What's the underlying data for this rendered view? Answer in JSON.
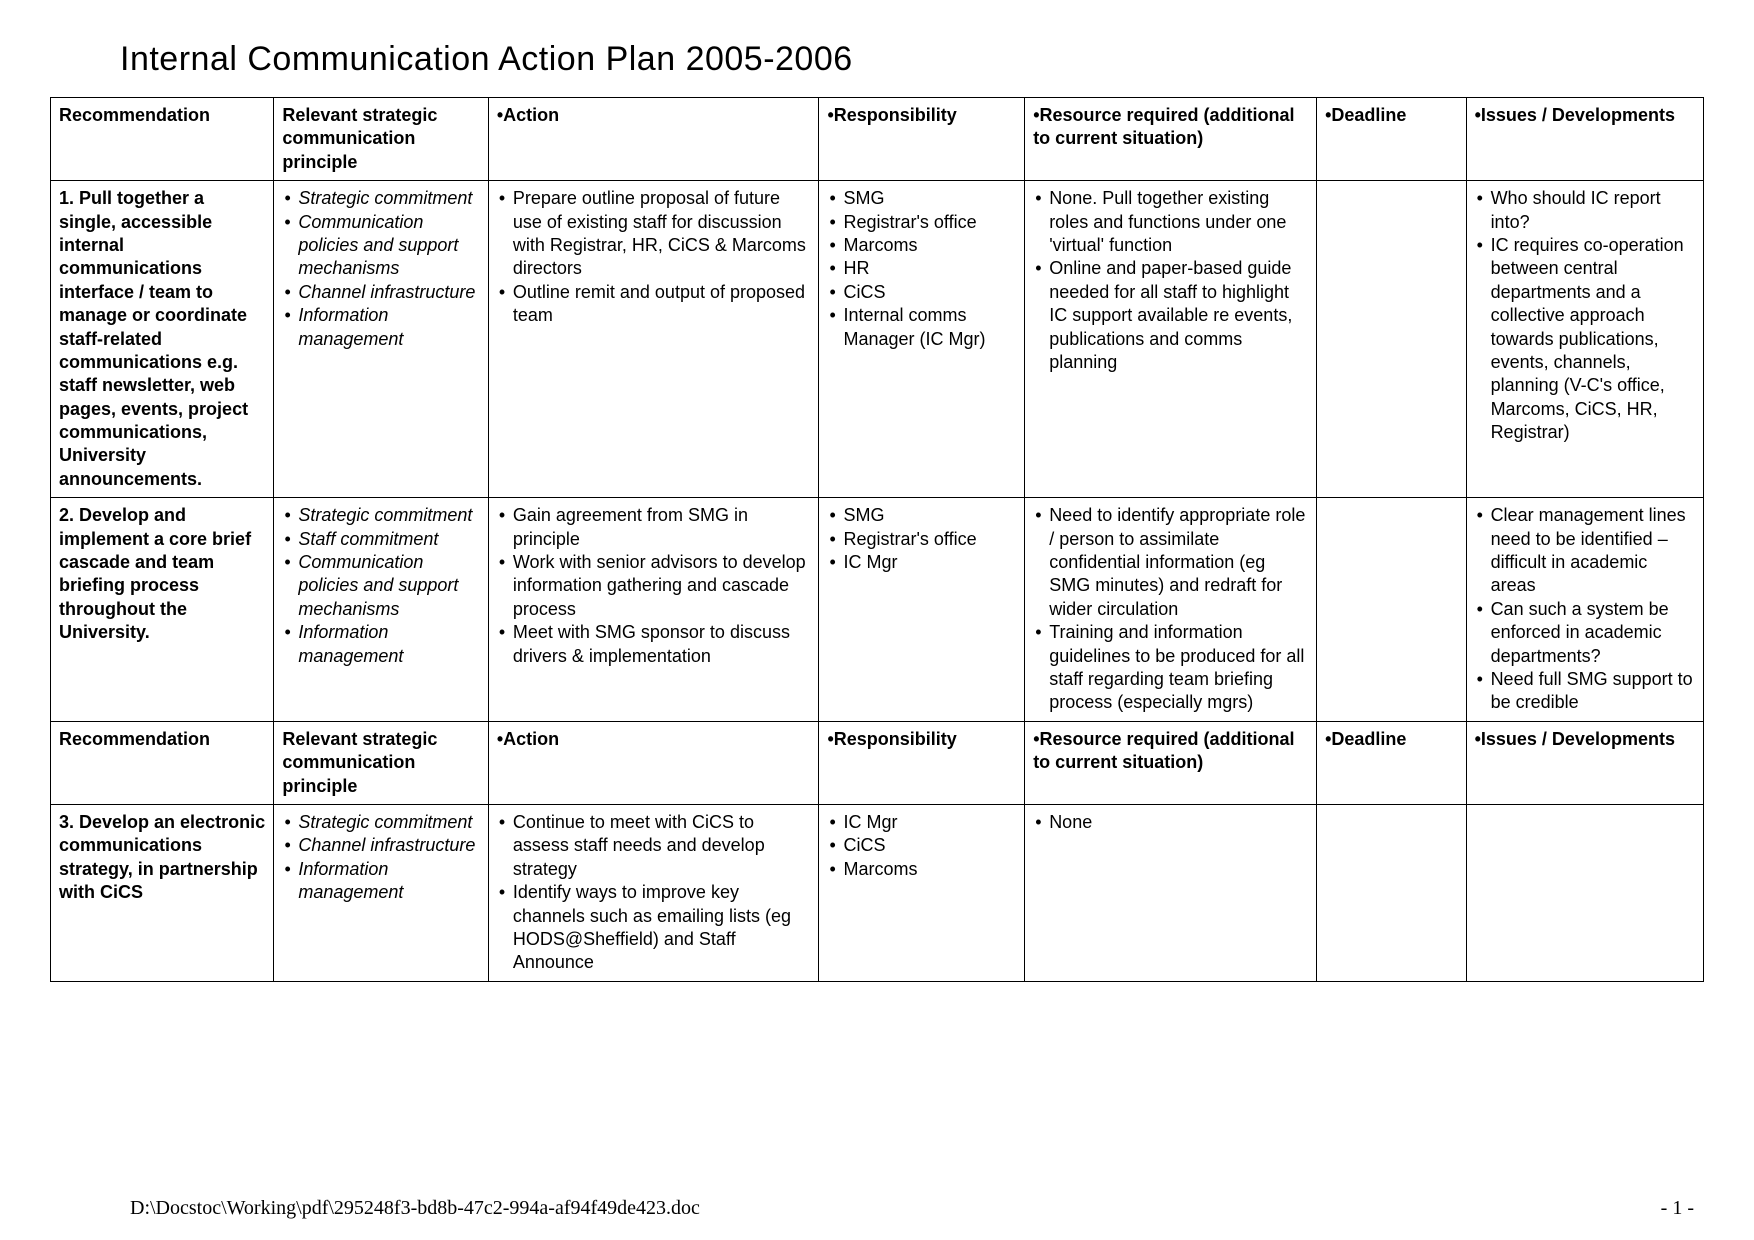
{
  "title": "Internal Communication Action Plan 2005-2006",
  "headers": {
    "c1": "Recommendation",
    "c2": "Relevant strategic communication principle",
    "c3": "Action",
    "c4": "Responsibility",
    "c5": "Resource required (additional to current situation)",
    "c6": "Deadline",
    "c7": "Issues / Developments"
  },
  "rows": [
    {
      "rec": "1. Pull together a single, accessible internal communications interface / team to manage or coordinate staff-related communications e.g. staff newsletter, web pages, events, project communications, University announcements.",
      "prin": [
        "Strategic commitment",
        "Communication policies and support mechanisms",
        "Channel infrastructure",
        "Information management"
      ],
      "act": [
        "Prepare outline proposal of future use of existing staff for discussion with Registrar, HR, CiCS & Marcoms directors",
        "Outline remit and output of proposed team"
      ],
      "resp": [
        "SMG",
        "Registrar's office",
        "Marcoms",
        "HR",
        "CiCS",
        "Internal comms Manager (IC Mgr)"
      ],
      "res": [
        "None.  Pull together existing roles and functions under one 'virtual' function",
        "Online and paper-based guide needed for all staff to highlight IC support available re events, publications and comms planning"
      ],
      "dead": "",
      "iss": [
        "Who should IC report into?",
        "IC requires co-operation between central departments and a collective approach towards publications, events, channels, planning (V-C's office, Marcoms, CiCS, HR, Registrar)"
      ]
    },
    {
      "rec": "2. Develop and implement a core brief cascade and team briefing process throughout the University.",
      "prin": [
        "Strategic commitment",
        "Staff commitment",
        "Communication policies and support mechanisms",
        "Information management"
      ],
      "act": [
        "Gain agreement from SMG in principle",
        "Work with senior advisors to develop information gathering  and cascade process",
        "Meet with SMG sponsor to discuss drivers &  implementation"
      ],
      "resp": [
        "SMG",
        "Registrar's office",
        "IC Mgr"
      ],
      "res": [
        "Need to identify appropriate role / person to assimilate confidential information (eg SMG minutes) and redraft for wider circulation",
        "Training and information guidelines to be produced for all staff regarding team briefing process (especially mgrs)"
      ],
      "dead": "",
      "iss": [
        "Clear management lines need to be identified – difficult in academic areas",
        "Can such a system be enforced in academic departments?",
        "Need full SMG support to be credible"
      ]
    },
    {
      "rec": "3. Develop an electronic communications strategy, in partnership with CiCS",
      "prin": [
        "Strategic commitment",
        "Channel infrastructure",
        "Information management"
      ],
      "act": [
        "Continue to meet with CiCS to assess staff needs and develop strategy",
        "Identify  ways to improve key channels such as emailing lists (eg HODS@Sheffield) and Staff Announce"
      ],
      "resp": [
        "IC Mgr",
        "CiCS",
        "Marcoms"
      ],
      "res": [
        "None"
      ],
      "dead": "",
      "iss": []
    }
  ],
  "footer_path": "D:\\Docstoc\\Working\\pdf\\295248f3-bd8b-47c2-994a-af94f49de423.doc",
  "footer_page": "- 1 -",
  "style": {
    "font_family": "Arial Narrow",
    "title_fontsize": 34,
    "cell_fontsize": 18,
    "border_color": "#000000",
    "background": "#ffffff"
  }
}
